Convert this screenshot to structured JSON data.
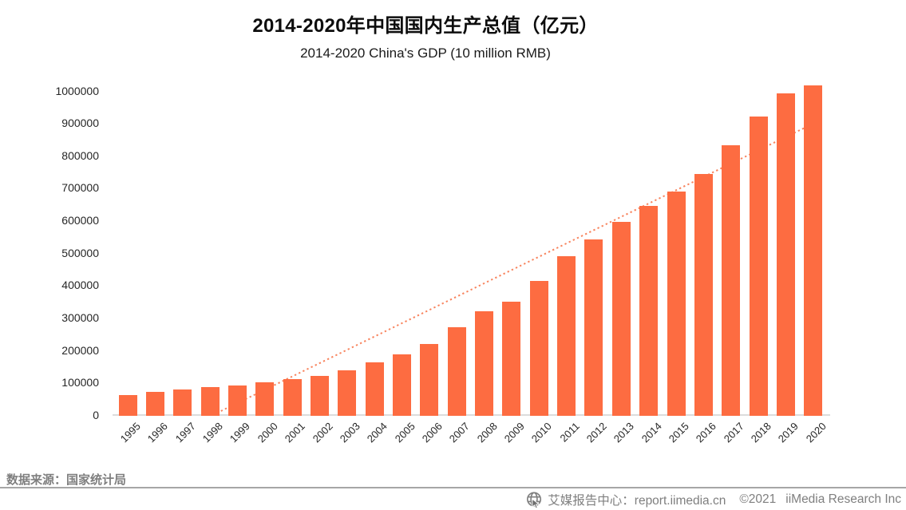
{
  "page": {
    "title": "2014-2020年中国国内生产总值（亿元）",
    "subtitle": "2014-2020 China's GDP (10 million RMB)"
  },
  "footer": {
    "source_label": "数据来源：国家统计局",
    "report_center": "艾媒报告中心：report.iimedia.cn",
    "copyright": "©2021",
    "company": "iiMedia Research Inc",
    "icon": "globe-cursor-icon"
  },
  "colors": {
    "bar": "#FD6C41",
    "trendline": "#F8845E",
    "axis_line": "#DCDCDC",
    "tick_text": "#262626",
    "title_text": "#0D0D0D",
    "footer_text": "#7F7F7F",
    "divider": "#A6A6A6"
  },
  "chart_data": {
    "type": "bar",
    "title": "2014-2020年中国国内生产总值（亿元）",
    "subtitle": "2014-2020 China's GDP (10 million RMB)",
    "xlabel": "",
    "ylabel": "",
    "categories": [
      1995,
      1996,
      1997,
      1998,
      1999,
      2000,
      2001,
      2002,
      2003,
      2004,
      2005,
      2006,
      2007,
      2008,
      2009,
      2010,
      2011,
      2012,
      2013,
      2014,
      2015,
      2016,
      2017,
      2018,
      2019,
      2020
    ],
    "values": [
      61340,
      71814,
      79715,
      85196,
      90564,
      100280,
      110863,
      121717,
      137422,
      161840,
      187319,
      219439,
      270232,
      319516,
      349081,
      413030,
      489301,
      540367,
      595244,
      643974,
      689052,
      744127,
      832036,
      919281,
      990865,
      1015986
    ],
    "ylim": [
      0,
      1000000
    ],
    "y_tick_step": 100000,
    "grid": false,
    "legend": "none",
    "trendline": {
      "style": "dotted",
      "points": [
        {
          "year": 1998.1,
          "value": 0
        },
        {
          "year": 2020.0,
          "value": 898000
        }
      ]
    }
  }
}
